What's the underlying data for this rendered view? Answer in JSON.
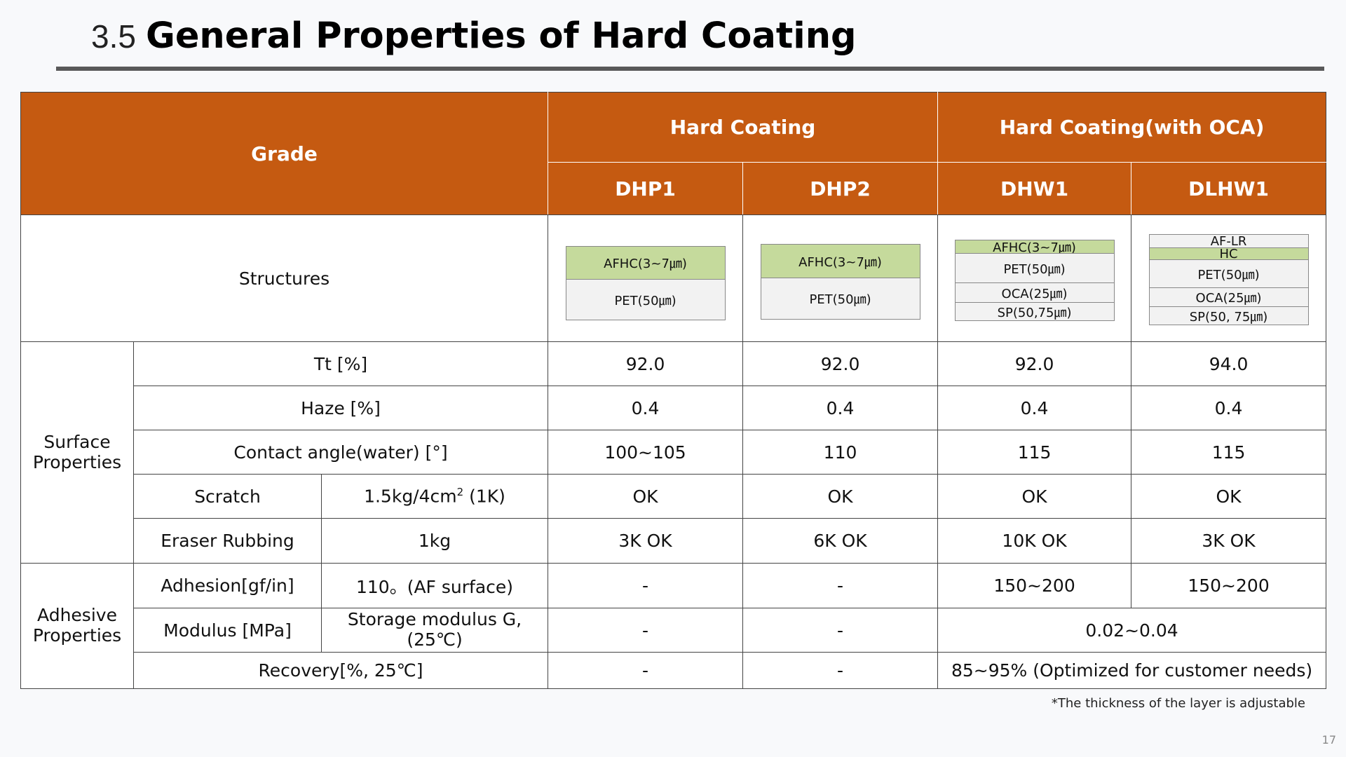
{
  "title": {
    "number": "3.5",
    "text": "General Properties of Hard Coating"
  },
  "header": {
    "grade": "Grade",
    "groups": [
      "Hard Coating",
      "Hard Coating(with OCA)"
    ],
    "grades": [
      "DHP1",
      "DHP2",
      "DHW1",
      "DLHW1"
    ]
  },
  "structures": {
    "label": "Structures",
    "dhp1": [
      "AFHC(3~7㎛)",
      "PET(50㎛)"
    ],
    "dhp2": [
      "AFHC(3~7㎛)",
      "PET(50㎛)"
    ],
    "dhw1": [
      "AFHC(3~7㎛)",
      "PET(50㎛)",
      "OCA(25㎛)",
      "SP(50,75㎛)"
    ],
    "dlhw1": [
      "AF-LR",
      "HC",
      "PET(50㎛)",
      "OCA(25㎛)",
      "SP(50, 75㎛)"
    ]
  },
  "surface": {
    "group_line1": "Surface",
    "group_line2": "Properties",
    "tt": {
      "label": "Tt [%]",
      "values": [
        "92.0",
        "92.0",
        "92.0",
        "94.0"
      ]
    },
    "haze": {
      "label": "Haze [%]",
      "values": [
        "0.4",
        "0.4",
        "0.4",
        "0.4"
      ]
    },
    "contact": {
      "label": "Contact angle(water) [°]",
      "values": [
        "100~105",
        "110",
        "115",
        "115"
      ]
    },
    "scratch": {
      "label": "Scratch",
      "condition_pre": "1.5kg/4cm",
      "condition_sup": "2",
      "condition_post": " (1K)",
      "values": [
        "OK",
        "OK",
        "OK",
        "OK"
      ]
    },
    "eraser": {
      "label": "Eraser Rubbing",
      "condition": "1kg",
      "values": [
        "3K OK",
        "6K OK",
        "10K OK",
        "3K OK"
      ]
    }
  },
  "adhesive": {
    "group_line1": "Adhesive",
    "group_line2": "Properties",
    "adhesion": {
      "label": "Adhesion[gf/in]",
      "condition": "110。(AF surface)",
      "values": [
        "-",
        "-",
        "150~200",
        "150~200"
      ]
    },
    "modulus": {
      "label": "Modulus [MPa]",
      "condition_line1": "Storage modulus G,",
      "condition_line2": "(25℃)",
      "values": [
        "-",
        "-"
      ],
      "merged": "0.02~0.04"
    },
    "recovery": {
      "label": "Recovery[%, 25℃]",
      "values": [
        "-",
        "-"
      ],
      "merged": "85~95% (Optimized for customer needs)"
    }
  },
  "footnote": "*The thickness of the layer is adjustable",
  "page_number": "17"
}
